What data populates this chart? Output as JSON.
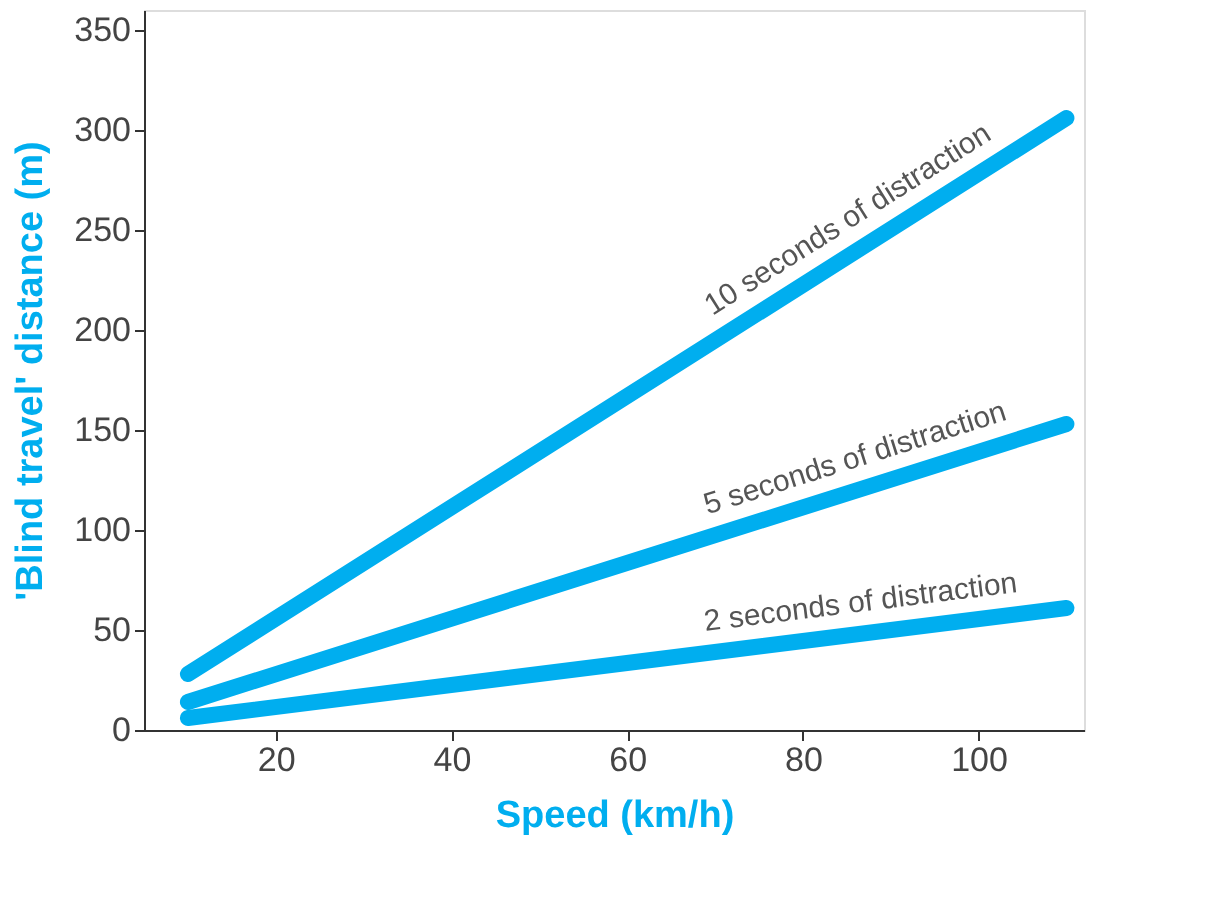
{
  "chart_data": {
    "type": "line",
    "xlabel": "Speed (km/h)",
    "ylabel": "'Blind travel' distance (m)",
    "x": [
      10,
      110
    ],
    "series": [
      {
        "name": "10 seconds of distraction",
        "color": "#00aeef",
        "values": [
          28,
          306
        ]
      },
      {
        "name": "5 seconds of distraction",
        "color": "#00aeef",
        "values": [
          14,
          153
        ]
      },
      {
        "name": "2 seconds of distraction",
        "color": "#00aeef",
        "values": [
          6,
          61
        ]
      }
    ],
    "xlim": [
      5,
      112
    ],
    "xticks": [
      20,
      40,
      60,
      80,
      100
    ],
    "ylim": [
      0,
      360
    ],
    "yticks": [
      0,
      50,
      100,
      150,
      200,
      250,
      300,
      350
    ],
    "grid": false,
    "marker": "none",
    "line_style": "solid"
  }
}
